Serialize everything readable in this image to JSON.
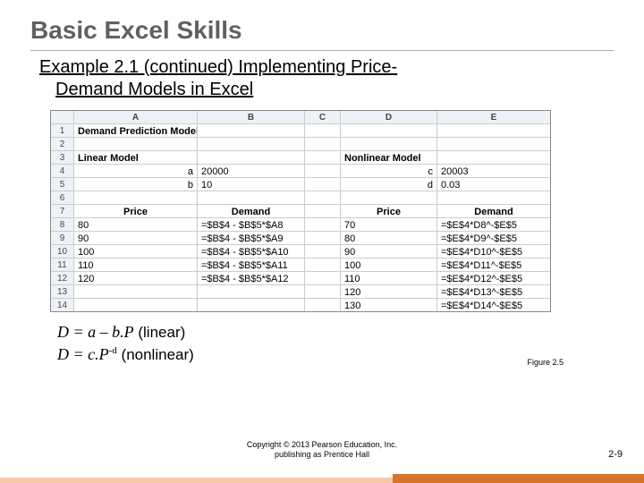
{
  "title": "Basic Excel Skills",
  "subtitle_l1": "Example 2.1  (continued) Implementing Price-",
  "subtitle_l2": "Demand Models in Excel",
  "figure_label": "Figure 2.5",
  "copyright_l1": "Copyright © 2013 Pearson Education, Inc.",
  "copyright_l2": "publishing as Prentice Hall",
  "pagenum": "2-9",
  "formula1_left": "D = a – b.P",
  "formula1_right": "  (linear)",
  "formula2_a": "D = c.P",
  "formula2_sup": "-d",
  "formula2_right": "      (nonlinear)",
  "excel": {
    "col_headers": [
      "A",
      "B",
      "C",
      "D",
      "E"
    ],
    "rows": [
      {
        "n": "1",
        "a": {
          "t": "Demand Prediction Models",
          "cls": "bold"
        }
      },
      {
        "n": "2"
      },
      {
        "n": "3",
        "a": {
          "t": "Linear Model",
          "cls": "bold"
        },
        "d": {
          "t": "Nonlinear Model",
          "cls": "bold"
        }
      },
      {
        "n": "4",
        "a": {
          "t": "a",
          "cls": "right"
        },
        "b": {
          "t": "20000"
        },
        "d": {
          "t": "c",
          "cls": "right"
        },
        "e": {
          "t": "20003"
        }
      },
      {
        "n": "5",
        "a": {
          "t": "b",
          "cls": "right"
        },
        "b": {
          "t": "10"
        },
        "d": {
          "t": "d",
          "cls": "right"
        },
        "e": {
          "t": "0.03"
        }
      },
      {
        "n": "6"
      },
      {
        "n": "7",
        "a": {
          "t": "Price",
          "cls": "bold center"
        },
        "b": {
          "t": "Demand",
          "cls": "bold center"
        },
        "d": {
          "t": "Price",
          "cls": "bold center"
        },
        "e": {
          "t": "Demand",
          "cls": "bold center"
        }
      },
      {
        "n": "8",
        "a": {
          "t": "80"
        },
        "b": {
          "t": "=$B$4 - $B$5*$A8"
        },
        "d": {
          "t": "70"
        },
        "e": {
          "t": "=$E$4*D8^-$E$5"
        }
      },
      {
        "n": "9",
        "a": {
          "t": "90"
        },
        "b": {
          "t": "=$B$4 - $B$5*$A9"
        },
        "d": {
          "t": "80"
        },
        "e": {
          "t": "=$E$4*D9^-$E$5"
        }
      },
      {
        "n": "10",
        "a": {
          "t": "100"
        },
        "b": {
          "t": "=$B$4 - $B$5*$A10"
        },
        "d": {
          "t": "90"
        },
        "e": {
          "t": "=$E$4*D10^-$E$5"
        }
      },
      {
        "n": "11",
        "a": {
          "t": "110"
        },
        "b": {
          "t": "=$B$4 - $B$5*$A11"
        },
        "d": {
          "t": "100"
        },
        "e": {
          "t": "=$E$4*D11^-$E$5"
        }
      },
      {
        "n": "12",
        "a": {
          "t": "120"
        },
        "b": {
          "t": "=$B$4 - $B$5*$A12"
        },
        "d": {
          "t": "110"
        },
        "e": {
          "t": "=$E$4*D12^-$E$5"
        }
      },
      {
        "n": "13",
        "d": {
          "t": "120"
        },
        "e": {
          "t": "=$E$4*D13^-$E$5"
        }
      },
      {
        "n": "14",
        "d": {
          "t": "130"
        },
        "e": {
          "t": "=$E$4*D14^-$E$5"
        }
      }
    ]
  },
  "colors": {
    "accent_light": "#f5c9a8",
    "accent_dark": "#d8742c"
  }
}
